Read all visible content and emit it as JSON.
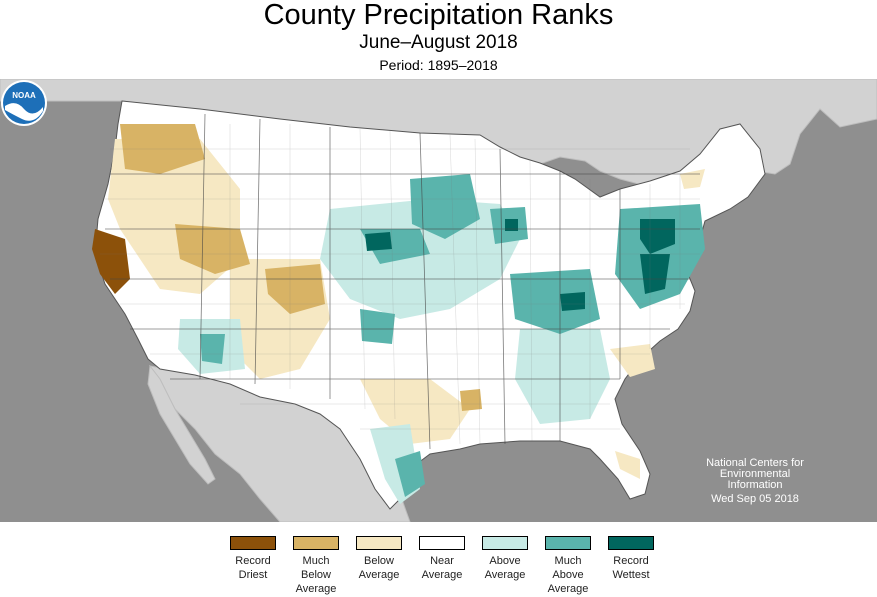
{
  "title": "County Precipitation Ranks",
  "subtitle": "June–August 2018",
  "period": "Period: 1895–2018",
  "logo": {
    "text": "NOAA",
    "icon": "noaa-logo-icon"
  },
  "credit": {
    "line1": "National Centers for",
    "line2": "Environmental",
    "line3": "Information",
    "date": "Wed Sep 05 2018"
  },
  "colors": {
    "ocean": "#8f8f8f",
    "land_outside": "#d2d2d2",
    "record_driest": "#8c510a",
    "much_below": "#d8b365",
    "below": "#f6e8c3",
    "near": "#ffffff",
    "above": "#c7eae5",
    "much_above": "#5ab4ac",
    "record_wettest": "#01665e"
  },
  "legend": [
    {
      "label": "Record\nDriest",
      "color": "#8c510a"
    },
    {
      "label": "Much\nBelow\nAverage",
      "color": "#d8b365"
    },
    {
      "label": "Below\nAverage",
      "color": "#f6e8c3"
    },
    {
      "label": "Near\nAverage",
      "color": "#ffffff"
    },
    {
      "label": "Above\nAverage",
      "color": "#c7eae5"
    },
    {
      "label": "Much\nAbove\nAverage",
      "color": "#5ab4ac"
    },
    {
      "label": "Record\nWettest",
      "color": "#01665e"
    }
  ]
}
